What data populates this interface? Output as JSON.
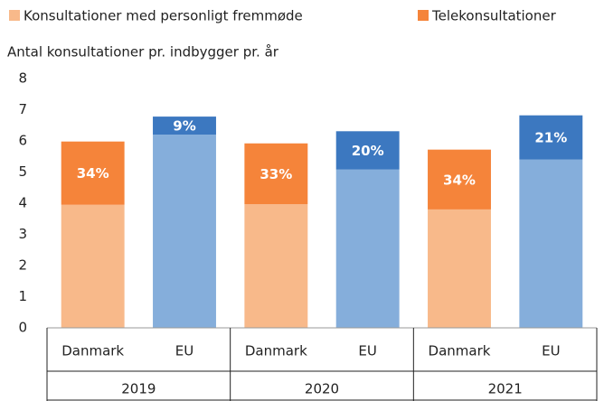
{
  "chart_data": {
    "type": "bar",
    "stacked": true,
    "y_label": "Antal konsultationer pr. indbygger pr. år",
    "categories": [
      "Danmark",
      "EU",
      "Danmark",
      "EU",
      "Danmark",
      "EU"
    ],
    "groups": [
      "2019",
      "2020",
      "2021"
    ],
    "series": [
      {
        "name": "Konsultationer med personligt fremmøde",
        "color": "#f8b98a",
        "colors": [
          "#f8b98a",
          "#85aedb",
          "#f8b98a",
          "#85aedb",
          "#f8b98a",
          "#85aedb"
        ],
        "values": [
          3.95,
          6.2,
          3.97,
          5.08,
          3.8,
          5.4
        ]
      },
      {
        "name": "Telekonsultationer",
        "color": "#f5843a",
        "colors": [
          "#f5843a",
          "#3c78c0",
          "#f5843a",
          "#3c78c0",
          "#f5843a",
          "#3c78c0"
        ],
        "values": [
          2.03,
          0.58,
          1.95,
          1.23,
          1.92,
          1.42
        ]
      }
    ],
    "share_labels": [
      "34%",
      "9%",
      "33%",
      "20%",
      "34%",
      "21%"
    ],
    "ylim": [
      0,
      8
    ],
    "yticks": [
      0,
      1,
      2,
      3,
      4,
      5,
      6,
      7,
      8
    ],
    "grid": false
  }
}
